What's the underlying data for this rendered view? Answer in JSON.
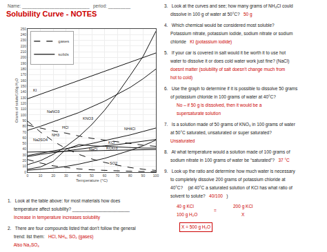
{
  "chart_data": {
    "type": "line",
    "title": "Solubility Curve - NOTES",
    "title_color": "#cc0000",
    "xlabel": "Temperature (°C)",
    "ylabel": "Grams of solute/100g H₂O",
    "x": [
      0,
      10,
      20,
      30,
      40,
      50,
      60,
      70,
      80,
      90,
      100
    ],
    "xlim": [
      0,
      100
    ],
    "xticks": [
      0,
      10,
      20,
      30,
      40,
      50,
      60,
      70,
      80,
      90,
      100
    ],
    "ylim": [
      0,
      250
    ],
    "yticks": [
      0,
      10,
      20,
      30,
      40,
      50,
      60,
      70,
      80,
      90,
      100,
      110,
      120,
      130,
      140,
      150,
      160,
      170,
      180,
      190,
      200,
      210,
      220,
      230,
      240,
      250
    ],
    "grid": true,
    "legend": "upper left",
    "color": "#111111",
    "series": [
      {
        "name": "KI",
        "line_style": "solid",
        "values": [
          128,
          136,
          144,
          152,
          160,
          168,
          176,
          184,
          192,
          200,
          208
        ]
      },
      {
        "name": "NaNO3",
        "line_style": "solid",
        "values": [
          73,
          80,
          88,
          96,
          104,
          114,
          124,
          136,
          148,
          163,
          180
        ]
      },
      {
        "name": "KNO3",
        "line_style": "solid",
        "values": [
          13,
          20,
          31,
          45,
          62,
          83,
          108,
          137,
          169,
          202,
          246
        ]
      },
      {
        "name": "NH4Cl",
        "line_style": "solid",
        "values": [
          29,
          33,
          37,
          41,
          45,
          50,
          55,
          60,
          65,
          71,
          77
        ]
      },
      {
        "name": "KCl",
        "line_style": "solid",
        "values": [
          27,
          31,
          34,
          37,
          40,
          43,
          46,
          48,
          51,
          54,
          57
        ]
      },
      {
        "name": "NaCl",
        "line_style": "solid",
        "values": [
          35,
          35.5,
          36,
          36.5,
          36.5,
          37,
          37.5,
          38,
          38.5,
          39,
          39.5
        ]
      },
      {
        "name": "KClO3",
        "line_style": "solid",
        "values": [
          3.3,
          5,
          7,
          10,
          14,
          19,
          24,
          31,
          38,
          46,
          56
        ]
      },
      {
        "name": "Na2SO4",
        "line_style": "solid",
        "values": [
          5,
          9,
          19,
          40,
          48,
          46,
          45,
          44,
          43,
          42,
          42
        ]
      },
      {
        "name": "NH3",
        "line_style": "dashed",
        "values": [
          89,
          70,
          54,
          41,
          31,
          23,
          17,
          12,
          8,
          5,
          3
        ]
      },
      {
        "name": "HCl",
        "line_style": "dashed",
        "values": [
          82,
          77,
          72,
          68,
          63,
          59,
          56,
          53,
          50,
          47,
          45
        ]
      },
      {
        "name": "SO2",
        "line_style": "dashed",
        "values": [
          22,
          16,
          11,
          8,
          5.5,
          4,
          3,
          2,
          1.5,
          1,
          0.5
        ]
      }
    ],
    "legend_entries": [
      {
        "name": "gases",
        "line_style": "dashed"
      },
      {
        "name": "solids",
        "line_style": "solid"
      }
    ],
    "annotations": [
      {
        "text": "KI",
        "x": 3,
        "y": 137
      },
      {
        "text": "NaNO3",
        "x": 14,
        "y": 100
      },
      {
        "text": "KNO3",
        "x": 42,
        "y": 88
      },
      {
        "text": "NH4Cl",
        "x": 74,
        "y": 70
      },
      {
        "text": "KCl",
        "x": 62,
        "y": 46
      },
      {
        "text": "NaCl",
        "x": 47,
        "y": 34
      },
      {
        "text": "KClO3",
        "x": 60,
        "y": 36
      },
      {
        "text": "Na2SO4",
        "x": 3,
        "y": 50
      },
      {
        "text": "NH3",
        "x": 18,
        "y": 59
      },
      {
        "text": "HCl",
        "x": 26,
        "y": 72
      },
      {
        "text": "SO2",
        "x": 63,
        "y": 10
      }
    ],
    "notes": [
      {
        "text": "Name: ___________________________   period: _________",
        "color": "#555555"
      },
      {
        "text": "3.   Look at the curves and see; how many grams of NH₄Cl could",
        "color": "#222222"
      },
      {
        "text": "     dissolve in 100 g of water at 50°C?   ",
        "color": "#222222"
      },
      {
        "text": "50 g",
        "color": "#cc0000"
      },
      {
        "text": "4.   Which chemical would be considered most soluble?",
        "color": "#222222"
      },
      {
        "text": "     Potassium nitrate, potassium iodide, sodium nitrate or sodium",
        "color": "#222222"
      },
      {
        "text": "     chloride   ",
        "color": "#222222"
      },
      {
        "text": "KI (potassium iodide)",
        "color": "#cc0000"
      },
      {
        "text": "5.   If your car is covered in salt would it be worth it to use hot",
        "color": "#222222"
      },
      {
        "text": "     water to dissolve it or does cold water work just fine? (NaCl)",
        "color": "#222222"
      },
      {
        "text": "     doesnt matter",
        "color": "#cc0000"
      },
      {
        "text": " (solubility of salt doesn’t change much from",
        "color": "#cc0000"
      },
      {
        "text": "     hot to cold)",
        "color": "#cc0000"
      },
      {
        "text": "6.   Use the graph to determine if it is possible to dissolve 50 grams",
        "color": "#222222"
      },
      {
        "text": "     of potassium chloride in 100 grams of water at 40°C?",
        "color": "#222222"
      },
      {
        "text": "          No – if 50 g is dissolved, then it would be a",
        "color": "#cc0000"
      },
      {
        "text": "          supersaturate solution",
        "color": "#cc0000"
      },
      {
        "text": "7.   Is a solution made of 50 grams of KNO₃ in 100 grams of water",
        "color": "#222222"
      },
      {
        "text": "     at 50°C saturated, unsaturated or super saturated?",
        "color": "#222222"
      },
      {
        "text": "     Unsaturated",
        "color": "#cc0000"
      },
      {
        "text": "8.   At what temperature would a solution made of 100 grams of",
        "color": "#222222"
      },
      {
        "text": "     sodium nitrate in 100 grams of water be “saturated”?   ",
        "color": "#222222"
      },
      {
        "text": "37 °C",
        "color": "#cc0000"
      },
      {
        "text": "9.   Look up the ratio and determine how much water is necessary",
        "color": "#222222"
      },
      {
        "text": "     to completely dissolve 200 grams of potassium chloride at",
        "color": "#222222"
      },
      {
        "text": "     40°C?    (at 40°C a saturated solution of KCl has what ratio of",
        "color": "#222222"
      },
      {
        "text": "     solvent to solute?   ",
        "color": "#222222"
      },
      {
        "text": "40/100",
        "color": "#cc0000"
      },
      {
        "text": "   )",
        "color": "#222222"
      },
      {
        "text": "40 g KCl",
        "color": "#cc0000"
      },
      {
        "text": "=",
        "color": "#cc0000"
      },
      {
        "text": "200 g KCl",
        "color": "#cc0000"
      },
      {
        "text": "100 g H₂O",
        "color": "#cc0000"
      },
      {
        "text": "X",
        "color": "#cc0000"
      },
      {
        "text": "X = 500 g H₂O",
        "color": "#cc0000"
      },
      {
        "text": "1.   Look at the table above: for most materials how does",
        "color": "#222222"
      },
      {
        "text": "     temperature affect solubility? _______________________",
        "color": "#222222"
      },
      {
        "text": "     Increase in temperature increases solubility",
        "color": "#cc0000"
      },
      {
        "text": "2.   There are four compounds listed that don’t follow the general",
        "color": "#222222"
      },
      {
        "text": "     trend: list them:   ",
        "color": "#222222"
      },
      {
        "text": "HCl, NH₃, SO₂ (gases)",
        "color": "#cc0000"
      },
      {
        "text": "     Also Na₂SO₄",
        "color": "#cc0000"
      }
    ]
  }
}
